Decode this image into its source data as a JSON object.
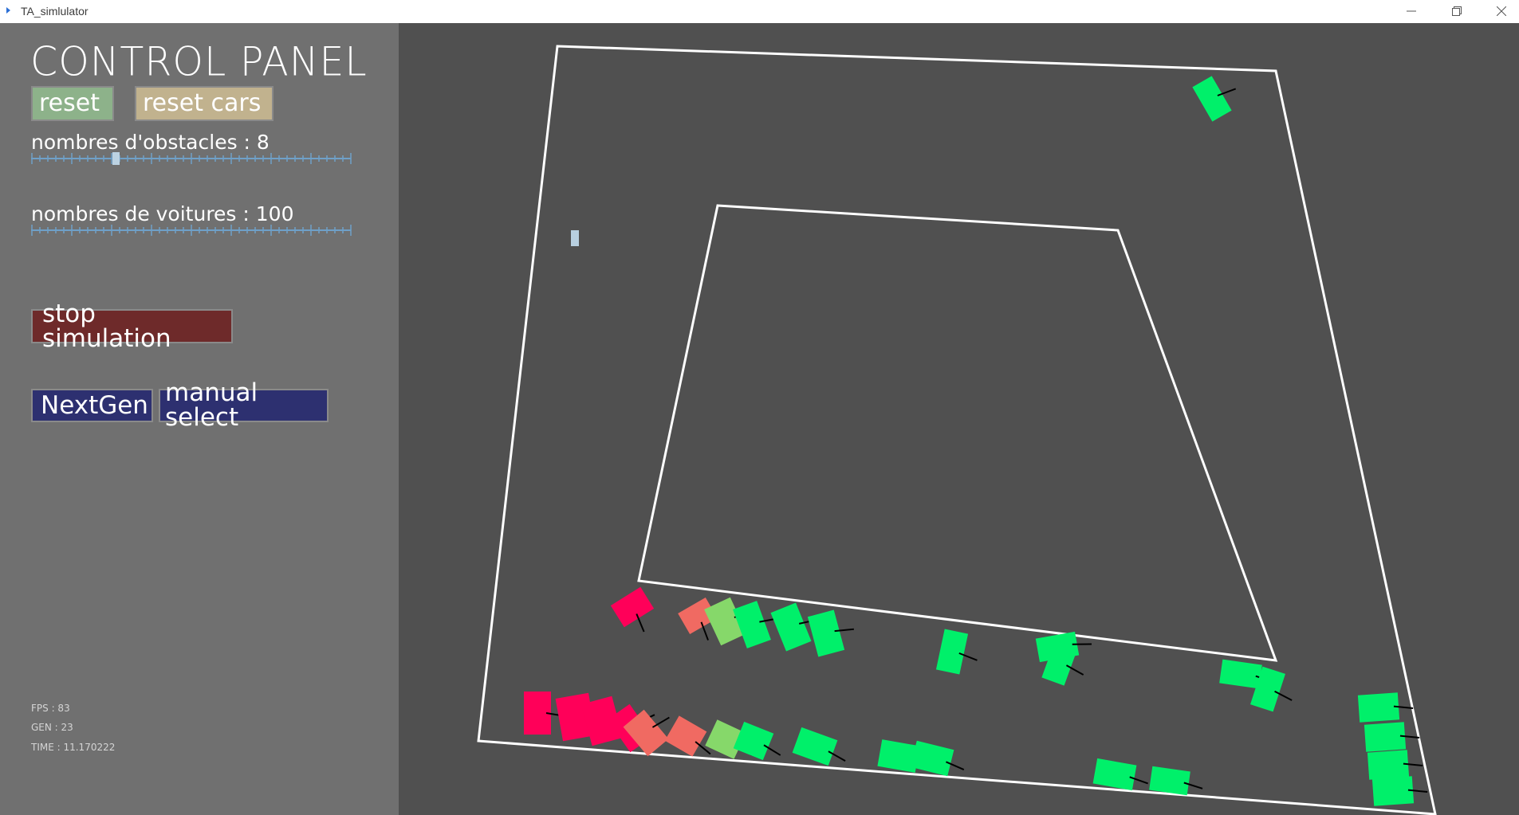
{
  "window": {
    "title": "TA_simlulator"
  },
  "panel": {
    "title": "CONTROL PANEL",
    "reset_label": "reset",
    "reset_cars_label": "reset cars",
    "obstacles_label": "nombres d'obstacles : 8",
    "obstacles_value": 8,
    "cars_label": "nombres de voitures : 100",
    "cars_value": 100,
    "stop_label": "stop simulation",
    "nextgen_label": "NextGen",
    "manual_label": "manual select"
  },
  "stats": {
    "fps": "FPS : 83",
    "gen": "GEN : 23",
    "time": "TIME : 11.170222"
  },
  "colors": {
    "reset_bg": "#8db28a",
    "reset_cars_bg": "#c1b28e",
    "stop_bg": "#6e2a2a",
    "nav_bg": "#2d3070",
    "car_green": "#00f06a",
    "car_red": "#ff0059",
    "car_salmon": "#f06a62",
    "car_lightgreen": "#86d86a",
    "track": "#ffffff"
  }
}
